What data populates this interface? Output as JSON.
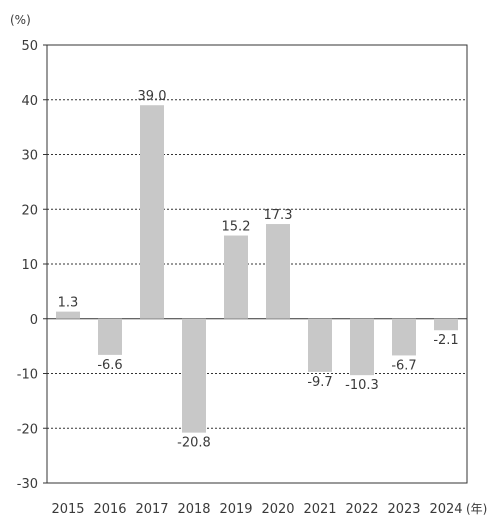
{
  "chart_data": {
    "type": "bar",
    "y_unit_label": "(%)",
    "x_unit_label": "(年)",
    "categories": [
      "2015",
      "2016",
      "2017",
      "2018",
      "2019",
      "2020",
      "2021",
      "2022",
      "2023",
      "2024"
    ],
    "values": [
      1.3,
      -6.6,
      39.0,
      -20.8,
      15.2,
      17.3,
      -9.7,
      -10.3,
      -6.7,
      -2.1
    ],
    "data_labels": [
      "1.3",
      "-6.6",
      "39.0",
      "-20.8",
      "15.2",
      "17.3",
      "-9.7",
      "-10.3",
      "-6.7",
      "-2.1"
    ],
    "ylim": [
      -30,
      50
    ],
    "yticks": [
      50,
      40,
      30,
      20,
      10,
      0,
      -10,
      -20,
      -30
    ],
    "ytick_labels": [
      "50",
      "40",
      "30",
      "20",
      "10",
      "0",
      "-10",
      "-20",
      "-30"
    ],
    "grid": "horizontal dotted",
    "colors": {
      "bar": "#c8c8c8",
      "axis": "#333333",
      "grid": "#333333",
      "text": "#3a3a3a"
    }
  }
}
